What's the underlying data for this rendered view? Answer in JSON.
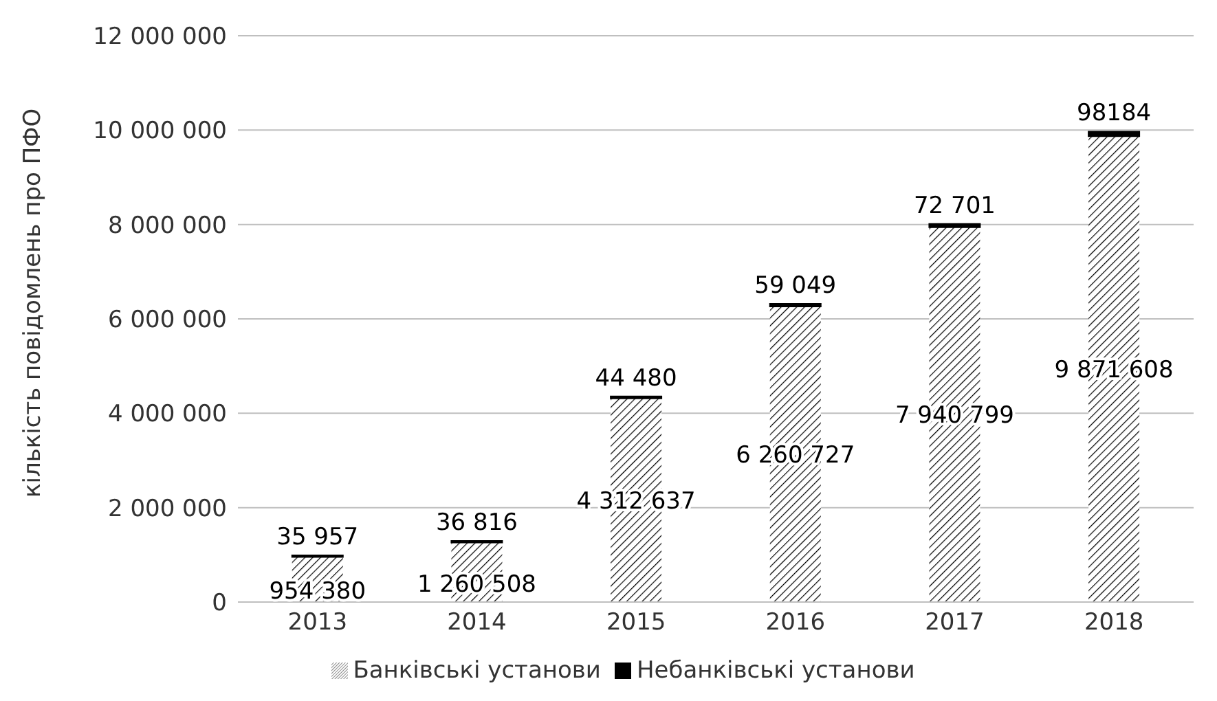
{
  "chart_data": {
    "type": "bar",
    "stacked": true,
    "ylabel": "кількість повідомлень про ПФО",
    "categories": [
      "2013",
      "2014",
      "2015",
      "2016",
      "2017",
      "2018"
    ],
    "series": [
      {
        "name": "Банківські  установи",
        "color": "#000000",
        "values": [
          954380,
          1260508,
          4312637,
          6260727,
          7940799,
          9871608
        ],
        "value_labels": [
          "954 380",
          "1 260 508",
          "4 312 637",
          "6 260 727",
          "7 940 799",
          "9 871 608"
        ]
      },
      {
        "name": "Небанківські установи",
        "color": "#000000",
        "values": [
          35957,
          36816,
          44480,
          59049,
          72701,
          98184
        ],
        "value_labels": [
          "35 957",
          "36 816",
          "44 480",
          "59 049",
          "72 701",
          "98184"
        ]
      }
    ],
    "ylim": [
      0,
      12000000
    ],
    "yticks": [
      {
        "value": 0,
        "label": "0"
      },
      {
        "value": 2000000,
        "label": "2 000 000"
      },
      {
        "value": 4000000,
        "label": "4 000 000"
      },
      {
        "value": 6000000,
        "label": "6 000 000"
      },
      {
        "value": 8000000,
        "label": "8 000 000"
      },
      {
        "value": 10000000,
        "label": "10 000 000"
      },
      {
        "value": 12000000,
        "label": "12 000 000"
      }
    ],
    "grid": "y",
    "legend": "bottom"
  }
}
